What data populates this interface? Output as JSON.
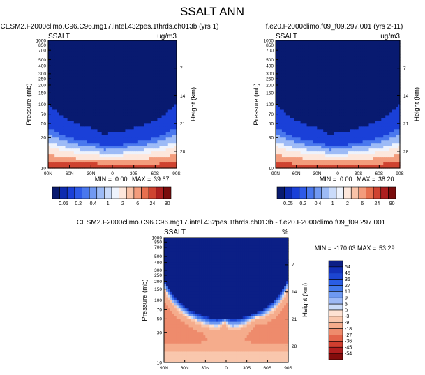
{
  "page_title": "SSALT ANN",
  "colors": {
    "abs_scale": [
      "#081a70",
      "#0d2bb0",
      "#1a40d8",
      "#2e5ae8",
      "#4a78ee",
      "#7199f2",
      "#9dbbf6",
      "#cadbfa",
      "#eef3fd",
      "#fde7dc",
      "#f9c3a8",
      "#f39c7c",
      "#e7704e",
      "#cf4330",
      "#ad1f1f",
      "#7a0c0c"
    ],
    "diff_scale": [
      "#0b1f86",
      "#1230b8",
      "#1c45d2",
      "#2a5de4",
      "#4379ec",
      "#6e99f2",
      "#9db9f6",
      "#cadbfa",
      "#fde1d2",
      "#f9c7ad",
      "#f5ac8c",
      "#ee8b6c",
      "#e3644a",
      "#cf3e2f",
      "#b01e1e",
      "#840c0c"
    ]
  },
  "chart_data": [
    {
      "type": "heatmap",
      "panel": "model",
      "title": "CESM2.F2000climo.C96.C96.mg17.intel.432pes.1thrds.ch013b (yrs 1)",
      "variable": "SSALT",
      "units": "ug/m3",
      "xlabel": "",
      "ylabel": "Pressure (mb)",
      "ylabel_right": "Height (km)",
      "x_ticks": [
        "90N",
        "60N",
        "30N",
        "0",
        "30S",
        "60S",
        "90S"
      ],
      "x_range": [
        90,
        -90
      ],
      "y_ticks": [
        "10",
        "30",
        "50",
        "70",
        "100",
        "150",
        "200",
        "250",
        "300",
        "400",
        "500",
        "700",
        "850",
        "1000"
      ],
      "y_range_mb": [
        1000,
        10
      ],
      "height_ticks": [
        "28",
        "21",
        "14",
        "7"
      ],
      "stats": {
        "min_label": "MIN =",
        "min": "0.00",
        "max_label": "MAX =",
        "max": "39.67"
      },
      "contour_levels": [
        0.05,
        0.2,
        0.4,
        1,
        2,
        6,
        24,
        90
      ],
      "colorbar_labels": [
        "0.05",
        "0.2",
        "0.4",
        "1",
        "2",
        "6",
        "24",
        "90"
      ],
      "sfc_max_lat": 30
    },
    {
      "type": "heatmap",
      "panel": "obs",
      "title": "f.e20.F2000climo.f09_f09.297.001 (yrs 2-11)",
      "variable": "SSALT",
      "units": "ug/m3",
      "xlabel": "",
      "ylabel": "Pressure (mb)",
      "ylabel_right": "Height (km)",
      "x_ticks": [
        "90N",
        "60N",
        "30N",
        "0",
        "30S",
        "60S",
        "90S"
      ],
      "x_range": [
        90,
        -90
      ],
      "y_ticks": [
        "10",
        "30",
        "50",
        "70",
        "100",
        "150",
        "200",
        "250",
        "300",
        "400",
        "500",
        "700",
        "850",
        "1000"
      ],
      "y_range_mb": [
        1000,
        10
      ],
      "height_ticks": [
        "28",
        "21",
        "14",
        "7"
      ],
      "stats": {
        "min_label": "MIN =",
        "min": "0.00",
        "max_label": "MAX =",
        "max": "38.20"
      },
      "contour_levels": [
        0.05,
        0.2,
        0.4,
        1,
        2,
        6,
        24,
        90
      ],
      "colorbar_labels": [
        "0.05",
        "0.2",
        "0.4",
        "1",
        "2",
        "6",
        "24",
        "90"
      ],
      "sfc_max_lat": 0
    },
    {
      "type": "heatmap",
      "panel": "diff",
      "title": "CESM2.F2000climo.C96.C96.mg17.intel.432pes.1thrds.ch013b - f.e20.F2000climo.f09_f09.297.001",
      "variable": "SSALT",
      "units": "%",
      "xlabel": "",
      "ylabel": "Pressure (mb)",
      "ylabel_right": "Height (km)",
      "x_ticks": [
        "90N",
        "60N",
        "30N",
        "0",
        "30S",
        "60S",
        "90S"
      ],
      "x_range": [
        90,
        -90
      ],
      "y_ticks": [
        "10",
        "30",
        "50",
        "70",
        "100",
        "150",
        "200",
        "250",
        "300",
        "400",
        "500",
        "700",
        "850",
        "1000"
      ],
      "y_range_mb": [
        1000,
        10
      ],
      "height_ticks": [
        "28",
        "21",
        "14",
        "7"
      ],
      "stats": {
        "min_label": "MIN =",
        "min": "-170.03",
        "max_label": "MAX =",
        "max": "53.29"
      },
      "contour_levels": [
        54,
        45,
        36,
        27,
        18,
        9,
        3,
        0,
        -3,
        -9,
        -18,
        -27,
        -36,
        -45,
        -54
      ],
      "colorbar_labels": [
        "54",
        "45",
        "36",
        "27",
        "18",
        "9",
        "3",
        "0",
        "-3",
        "-9",
        "-18",
        "-27",
        "-36",
        "-45",
        "-54"
      ]
    }
  ]
}
